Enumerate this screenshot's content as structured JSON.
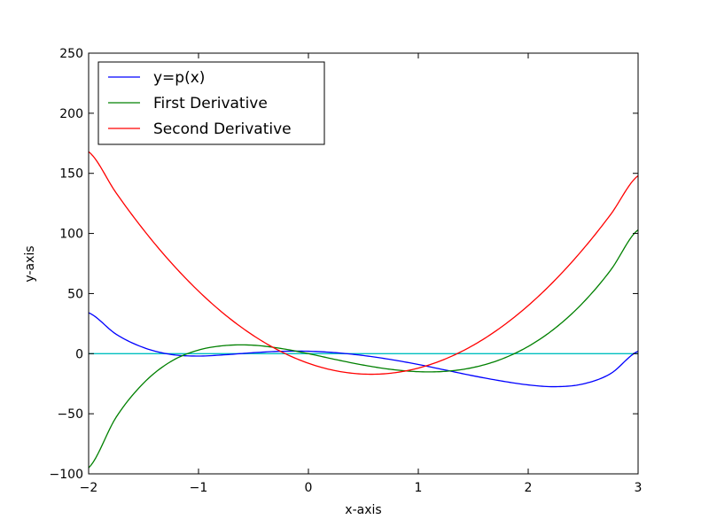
{
  "chart_data": {
    "type": "line",
    "title": "",
    "xlabel": "x-axis",
    "ylabel": "y-axis",
    "xlim": [
      -2,
      3
    ],
    "ylim": [
      -100,
      250
    ],
    "xticks": [
      -2,
      -1,
      0,
      1,
      2,
      3
    ],
    "yticks": [
      -100,
      -50,
      0,
      50,
      100,
      150,
      200,
      250
    ],
    "xtick_labels": [
      "−2",
      "−1",
      "0",
      "1",
      "2",
      "3"
    ],
    "ytick_labels": [
      "−100",
      "−50",
      "0",
      "50",
      "100",
      "150",
      "200",
      "250"
    ],
    "grid": false,
    "legend": "top-left",
    "series": [
      {
        "name": "y=p(x)",
        "color": "#0000ff",
        "x": [
          -2.0,
          -1.75,
          -1.5,
          -1.25,
          -1.0,
          -0.75,
          -0.5,
          -0.25,
          0.0,
          0.25,
          0.5,
          0.75,
          1.0,
          1.25,
          1.5,
          1.75,
          2.0,
          2.25,
          2.5,
          2.75,
          3.0
        ],
        "y": [
          34,
          16.18,
          5.06,
          -0.66,
          -2,
          -0.87,
          0.81,
          1.94,
          2,
          0.81,
          -1.56,
          -4.88,
          -9,
          -13.72,
          -18.44,
          -22.63,
          -26,
          -27.46,
          -25.19,
          -16.6,
          2
        ]
      },
      {
        "name": "First Derivative",
        "color": "#008000",
        "x": [
          -2.0,
          -1.75,
          -1.5,
          -1.25,
          -1.0,
          -0.75,
          -0.5,
          -0.25,
          0.0,
          0.25,
          0.5,
          0.75,
          1.0,
          1.25,
          1.5,
          1.75,
          2.0,
          2.25,
          2.5,
          2.75,
          3.0
        ],
        "y": [
          -95,
          -52.94,
          -24.5,
          -6.44,
          3,
          6.81,
          7,
          4.31,
          0,
          -4.94,
          -9.5,
          -13.06,
          -15,
          -14.69,
          -11.5,
          -4.81,
          6,
          21.56,
          42.5,
          69.44,
          103
        ]
      },
      {
        "name": "Second Derivative",
        "color": "#ff0000",
        "x": [
          -2.0,
          -1.75,
          -1.5,
          -1.25,
          -1.0,
          -0.75,
          -0.5,
          -0.25,
          0.0,
          0.25,
          0.5,
          0.75,
          1.0,
          1.25,
          1.5,
          1.75,
          2.0,
          2.25,
          2.5,
          2.75,
          3.0
        ],
        "y": [
          168,
          133.75,
          103,
          75.75,
          52,
          31.75,
          15,
          1.75,
          -8,
          -14.25,
          -17,
          -16.25,
          -12,
          -4.25,
          7,
          21.75,
          40,
          61.75,
          87,
          115.75,
          148
        ]
      },
      {
        "color": "#00bfbf",
        "x": [
          -2,
          3
        ],
        "y": [
          0,
          0
        ]
      }
    ]
  }
}
